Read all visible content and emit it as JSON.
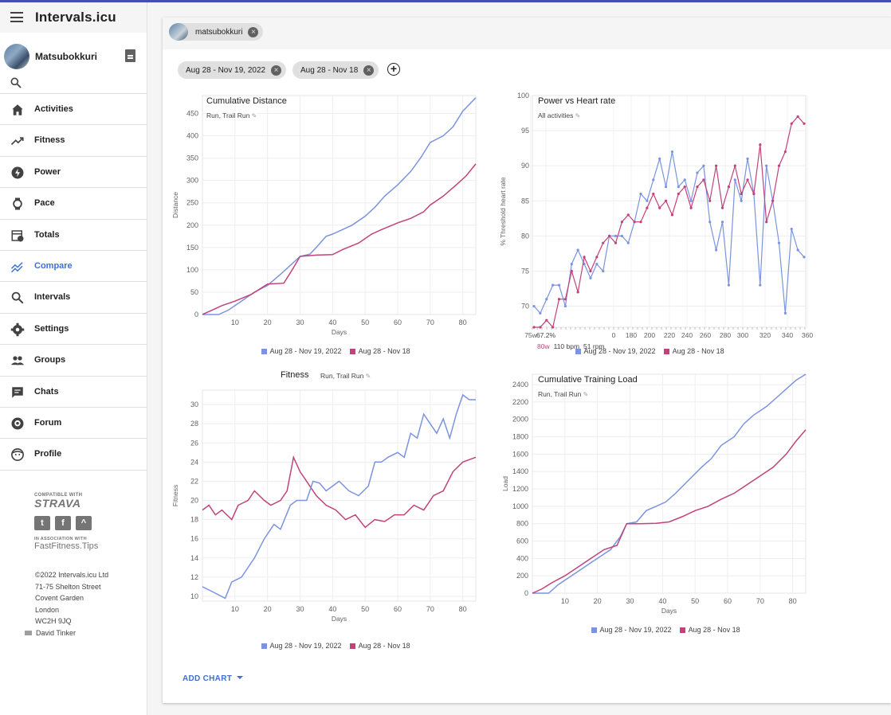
{
  "app": {
    "title": "Intervals.icu"
  },
  "user": {
    "name": "Matsubokkuri"
  },
  "nav": [
    {
      "label": "Activities",
      "icon": "home-icon"
    },
    {
      "label": "Fitness",
      "icon": "trending-up-icon"
    },
    {
      "label": "Power",
      "icon": "bolt-icon"
    },
    {
      "label": "Pace",
      "icon": "watch-icon"
    },
    {
      "label": "Totals",
      "icon": "calendar-clock-icon"
    },
    {
      "label": "Compare",
      "icon": "compare-icon",
      "active": true
    },
    {
      "label": "Intervals",
      "icon": "search-icon"
    },
    {
      "label": "Settings",
      "icon": "gear-icon"
    },
    {
      "label": "Groups",
      "icon": "people-icon"
    },
    {
      "label": "Chats",
      "icon": "chat-icon"
    },
    {
      "label": "Forum",
      "icon": "discourse-icon"
    },
    {
      "label": "Profile",
      "icon": "face-icon"
    }
  ],
  "partners": {
    "compatible_with": "COMPATIBLE WITH",
    "strava": "STRAVA",
    "in_association": "IN ASSOCIATION WITH",
    "fastfitness": "FastFitness.Tips"
  },
  "footer": {
    "copyright": "©2022 Intervals.icu Ltd",
    "address_line1": "71-75 Shelton Street",
    "address_line2": "Covent Garden",
    "address_line3": "London",
    "address_line4": "WC2H 9JQ",
    "author": "David Tinker"
  },
  "athlete_chip": {
    "label": "matsubokkuri"
  },
  "date_chips": [
    {
      "label": "Aug 28 - Nov 19, 2022"
    },
    {
      "label": "Aug 28 - Nov 18"
    }
  ],
  "add_chart_label": "ADD CHART",
  "colors": {
    "series1": "#7b93e0",
    "series2": "#c2427a",
    "accent": "#3f6fd1"
  },
  "charts": [
    {
      "title": "Cumulative Distance",
      "subtitle": "Run, Trail Run",
      "xlabel": "Days",
      "ylabel": "Distance",
      "xlim": [
        0,
        84
      ],
      "ylim": [
        0,
        490
      ],
      "xticks": [
        10,
        20,
        30,
        40,
        50,
        60,
        70,
        80
      ],
      "yticks": [
        0,
        50,
        100,
        150,
        200,
        250,
        300,
        350,
        400,
        450
      ],
      "legend": [
        "Aug 28 - Nov 19, 2022",
        "Aug 28 - Nov 18"
      ]
    },
    {
      "title": "Power vs Heart rate",
      "subtitle": "All activities",
      "ylabel": "% Threshold heart rate",
      "ylim": [
        67,
        100
      ],
      "xtick_labels": [
        "75w",
        "67.2%",
        "0",
        "180",
        "200",
        "220",
        "240",
        "260",
        "280",
        "300",
        "320",
        "340",
        "360"
      ],
      "yticks": [
        70,
        75,
        80,
        85,
        90,
        95,
        100
      ],
      "tooltip": {
        "power": "80w",
        "hr": "110 bpm",
        "cadence": "51 rpm"
      },
      "legend": [
        "Aug 28 - Nov 19, 2022",
        "Aug 28 - Nov 18"
      ]
    },
    {
      "title": "Fitness",
      "subtitle": "Run, Trail Run",
      "xlabel": "Days",
      "ylabel": "Fitness",
      "xlim": [
        0,
        84
      ],
      "ylim": [
        9.5,
        31.5
      ],
      "xticks": [
        10,
        20,
        30,
        40,
        50,
        60,
        70,
        80
      ],
      "yticks": [
        10,
        12,
        14,
        16,
        18,
        20,
        22,
        24,
        26,
        28,
        30
      ],
      "legend": [
        "Aug 28 - Nov 19, 2022",
        "Aug 28 - Nov 18"
      ]
    },
    {
      "title": "Cumulative Training Load",
      "subtitle": "Run, Trail Run",
      "xlabel": "Days",
      "ylabel": "Load",
      "xlim": [
        0,
        84
      ],
      "ylim": [
        0,
        2520
      ],
      "xticks": [
        10,
        20,
        30,
        40,
        50,
        60,
        70,
        80
      ],
      "yticks": [
        0,
        200,
        400,
        600,
        800,
        1000,
        1200,
        1400,
        1600,
        1800,
        2000,
        2200,
        2400
      ],
      "legend": [
        "Aug 28 - Nov 19, 2022",
        "Aug 28 - Nov 18"
      ]
    }
  ],
  "chart_data": [
    {
      "type": "line",
      "title": "Cumulative Distance",
      "xlabel": "Days",
      "ylabel": "Distance",
      "series": [
        {
          "name": "Aug 28 - Nov 19, 2022",
          "x": [
            0,
            5,
            8,
            12,
            16,
            20,
            24,
            27,
            30,
            33,
            35,
            38,
            40,
            43,
            46,
            50,
            53,
            56,
            60,
            64,
            67,
            70,
            74,
            77,
            80,
            84
          ],
          "y": [
            0,
            0,
            10,
            30,
            50,
            65,
            90,
            110,
            130,
            135,
            150,
            175,
            180,
            190,
            200,
            220,
            240,
            265,
            290,
            320,
            350,
            385,
            400,
            420,
            455,
            485
          ]
        },
        {
          "name": "Aug 28 - Nov 18",
          "x": [
            0,
            3,
            6,
            10,
            15,
            20,
            25,
            28,
            30,
            35,
            40,
            43,
            48,
            52,
            55,
            60,
            64,
            68,
            70,
            74,
            78,
            81,
            84
          ],
          "y": [
            0,
            10,
            20,
            30,
            45,
            68,
            70,
            105,
            130,
            133,
            134,
            145,
            160,
            180,
            190,
            205,
            215,
            230,
            245,
            265,
            290,
            310,
            337
          ]
        }
      ]
    },
    {
      "type": "line",
      "title": "Power vs Heart rate",
      "ylabel": "% Threshold heart rate",
      "series": [
        {
          "name": "Aug 28 - Nov 19, 2022",
          "y": [
            70,
            69,
            71,
            73,
            73,
            70,
            76,
            78,
            76,
            74,
            76,
            75,
            80,
            80,
            80,
            79,
            82,
            86,
            85,
            88,
            91,
            87,
            92,
            87,
            88,
            85,
            89,
            90,
            82,
            78,
            82,
            73,
            88,
            85,
            91,
            86,
            73,
            90,
            85,
            79,
            69,
            81,
            78,
            77
          ]
        },
        {
          "name": "Aug 28 - Nov 18",
          "y": [
            67,
            67,
            68,
            67,
            71,
            71,
            75,
            72,
            77,
            75,
            77,
            79,
            80,
            79,
            82,
            83,
            82,
            82,
            84,
            86,
            84,
            85,
            83,
            86,
            87,
            84,
            87,
            88,
            85,
            90,
            84,
            87,
            90,
            86,
            88,
            86,
            93,
            82,
            85,
            90,
            92,
            96,
            97,
            96
          ]
        }
      ]
    },
    {
      "type": "line",
      "title": "Fitness",
      "xlabel": "Days",
      "ylabel": "Fitness",
      "series": [
        {
          "name": "Aug 28 - Nov 19, 2022",
          "x": [
            0,
            3,
            7,
            9,
            12,
            16,
            19,
            22,
            24,
            27,
            29,
            32,
            34,
            36,
            38,
            40,
            42,
            45,
            48,
            51,
            53,
            55,
            57,
            60,
            62,
            64,
            66,
            68,
            70,
            72,
            74,
            76,
            78,
            80,
            82,
            84
          ],
          "y": [
            11,
            10.5,
            9.8,
            11.5,
            12,
            14,
            16,
            17.5,
            17,
            19.5,
            20,
            20,
            22,
            21.8,
            21,
            21.5,
            22,
            21,
            20.5,
            21.5,
            24,
            24,
            24.5,
            25,
            24.5,
            27,
            26.5,
            29,
            28,
            27,
            28.5,
            26.5,
            29,
            31,
            30.5,
            30.5
          ]
        },
        {
          "name": "Aug 28 - Nov 18",
          "x": [
            0,
            2,
            4,
            6,
            9,
            11,
            14,
            16,
            19,
            21,
            24,
            26,
            28,
            30,
            32,
            35,
            38,
            41,
            44,
            47,
            50,
            53,
            56,
            59,
            62,
            65,
            68,
            71,
            74,
            77,
            80,
            84
          ],
          "y": [
            19,
            19.5,
            18.5,
            19,
            18,
            19.5,
            20,
            21,
            20,
            19.5,
            20,
            21,
            24.5,
            23,
            22,
            20.5,
            19.5,
            19,
            18,
            18.5,
            17.2,
            18,
            17.8,
            18.5,
            18.5,
            19.5,
            19,
            20.5,
            21,
            23,
            24,
            24.5
          ]
        }
      ]
    },
    {
      "type": "line",
      "title": "Cumulative Training Load",
      "xlabel": "Days",
      "ylabel": "Load",
      "series": [
        {
          "name": "Aug 28 - Nov 19, 2022",
          "x": [
            0,
            5,
            8,
            12,
            16,
            20,
            24,
            27,
            29,
            32,
            35,
            38,
            41,
            44,
            48,
            52,
            55,
            58,
            62,
            65,
            68,
            72,
            75,
            78,
            81,
            84
          ],
          "y": [
            0,
            0,
            100,
            200,
            300,
            400,
            500,
            650,
            800,
            820,
            950,
            1000,
            1050,
            1150,
            1300,
            1450,
            1550,
            1700,
            1800,
            1950,
            2050,
            2150,
            2250,
            2350,
            2450,
            2520
          ]
        },
        {
          "name": "Aug 28 - Nov 18",
          "x": [
            0,
            3,
            6,
            10,
            14,
            18,
            22,
            26,
            29,
            33,
            38,
            42,
            46,
            50,
            54,
            58,
            62,
            66,
            70,
            74,
            78,
            81,
            84
          ],
          "y": [
            0,
            50,
            120,
            200,
            300,
            400,
            500,
            550,
            800,
            800,
            805,
            820,
            880,
            950,
            1000,
            1080,
            1150,
            1250,
            1350,
            1450,
            1600,
            1750,
            1880
          ]
        }
      ]
    }
  ]
}
